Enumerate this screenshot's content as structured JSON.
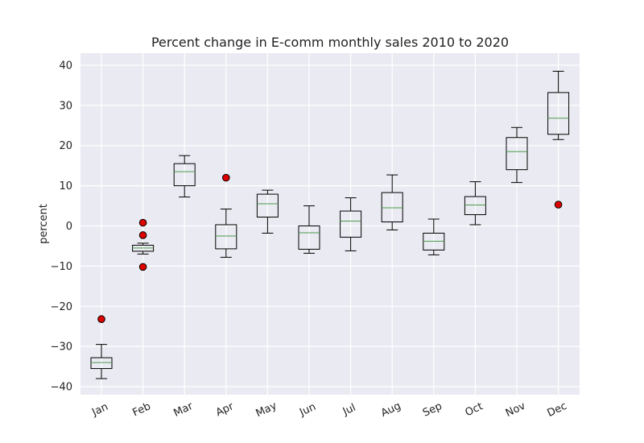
{
  "chart_data": {
    "type": "box",
    "title": "Percent change in E-comm monthly sales 2010 to 2020",
    "xlabel": "",
    "ylabel": "percent",
    "ylim": [
      -42,
      43
    ],
    "yticks": [
      -40,
      -30,
      -20,
      -10,
      0,
      10,
      20,
      30,
      40
    ],
    "ytick_labels": [
      "−40",
      "−30",
      "−20",
      "−10",
      "0",
      "10",
      "20",
      "30",
      "40"
    ],
    "grid": true,
    "categories": [
      "Jan",
      "Feb",
      "Mar",
      "Apr",
      "May",
      "Jun",
      "Jul",
      "Aug",
      "Sep",
      "Oct",
      "Nov",
      "Dec"
    ],
    "boxes": [
      {
        "whisker_low": -38.0,
        "q1": -35.5,
        "median": -34.0,
        "q3": -32.8,
        "whisker_high": -29.5,
        "outliers": [
          -23.2
        ]
      },
      {
        "whisker_low": -7.0,
        "q1": -6.3,
        "median": -5.5,
        "q3": -4.8,
        "whisker_high": -4.3,
        "outliers": [
          0.8,
          -2.3,
          -10.2
        ]
      },
      {
        "whisker_low": 7.2,
        "q1": 10.0,
        "median": 13.5,
        "q3": 15.5,
        "whisker_high": 17.5,
        "outliers": []
      },
      {
        "whisker_low": -7.8,
        "q1": -5.7,
        "median": -2.5,
        "q3": 0.3,
        "whisker_high": 4.2,
        "outliers": [
          12.0
        ]
      },
      {
        "whisker_low": -1.8,
        "q1": 2.2,
        "median": 5.5,
        "q3": 7.9,
        "whisker_high": 8.9,
        "outliers": []
      },
      {
        "whisker_low": -6.8,
        "q1": -5.8,
        "median": -1.7,
        "q3": 0.0,
        "whisker_high": 5.0,
        "outliers": []
      },
      {
        "whisker_low": -6.2,
        "q1": -2.8,
        "median": 1.2,
        "q3": 3.7,
        "whisker_high": 7.0,
        "outliers": []
      },
      {
        "whisker_low": -1.0,
        "q1": 1.0,
        "median": 4.5,
        "q3": 8.3,
        "whisker_high": 12.7,
        "outliers": []
      },
      {
        "whisker_low": -7.2,
        "q1": -6.0,
        "median": -3.8,
        "q3": -1.8,
        "whisker_high": 1.7,
        "outliers": []
      },
      {
        "whisker_low": 0.3,
        "q1": 2.8,
        "median": 5.2,
        "q3": 7.3,
        "whisker_high": 11.0,
        "outliers": []
      },
      {
        "whisker_low": 10.8,
        "q1": 14.0,
        "median": 18.5,
        "q3": 22.0,
        "whisker_high": 24.5,
        "outliers": []
      },
      {
        "whisker_low": 21.5,
        "q1": 22.8,
        "median": 26.8,
        "q3": 33.2,
        "whisker_high": 38.5,
        "outliers": [
          5.3
        ]
      }
    ],
    "colors": {
      "plot_background": "#eaeaf2",
      "grid": "#ffffff",
      "box": "#000000",
      "median": "#4c9a4c",
      "outlier_fill": "#dd0000",
      "outlier_edge": "#000000"
    }
  }
}
